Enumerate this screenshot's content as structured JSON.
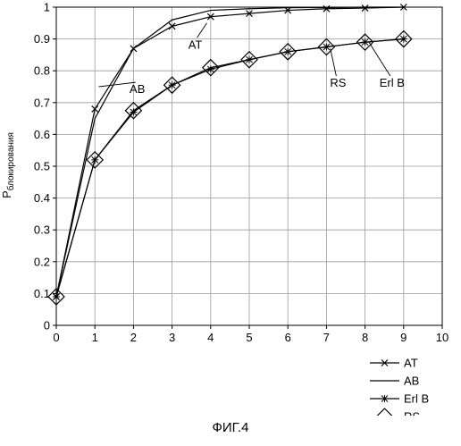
{
  "chart_data": {
    "type": "line",
    "ylabel_main": "P",
    "ylabel_sub": "блокирования",
    "xlim": [
      0,
      10
    ],
    "ylim": [
      0,
      1
    ],
    "x_ticks": [
      "0",
      "1",
      "2",
      "3",
      "4",
      "5",
      "6",
      "7",
      "8",
      "9",
      "10"
    ],
    "y_ticks": [
      "0",
      "0.1",
      "0.2",
      "0.3",
      "0.4",
      "0.5",
      "0.6",
      "0.7",
      "0.8",
      "0.9",
      "1"
    ],
    "grid": true,
    "legend_position": "bottom-right",
    "series": [
      {
        "name": "AT",
        "marker": "x",
        "x": [
          0,
          1,
          2,
          3,
          4,
          5,
          6,
          7,
          8,
          9
        ],
        "values": [
          0.09,
          0.68,
          0.87,
          0.94,
          0.97,
          0.98,
          0.99,
          0.995,
          0.997,
          1.0
        ]
      },
      {
        "name": "AB",
        "marker": "none",
        "x": [
          0,
          1,
          2,
          3,
          4,
          5,
          6,
          7,
          8,
          9
        ],
        "values": [
          0.09,
          0.65,
          0.87,
          0.96,
          0.99,
          0.995,
          0.998,
          0.999,
          1.0,
          1.0
        ]
      },
      {
        "name": "Erl B",
        "marker": "star",
        "x": [
          0,
          1,
          2,
          3,
          4,
          5,
          6,
          7,
          8,
          9
        ],
        "values": [
          0.09,
          0.52,
          0.67,
          0.755,
          0.805,
          0.835,
          0.86,
          0.875,
          0.89,
          0.9
        ]
      },
      {
        "name": "RS",
        "marker": "diamond",
        "x": [
          0,
          1,
          2,
          3,
          4,
          5,
          6,
          7,
          8,
          9
        ],
        "values": [
          0.09,
          0.52,
          0.675,
          0.755,
          0.81,
          0.835,
          0.86,
          0.875,
          0.89,
          0.9
        ]
      }
    ],
    "annotations": [
      {
        "text": "AB",
        "points_to": {
          "x": 1.1,
          "y": 0.75
        },
        "label_at": {
          "x": 2.1,
          "y": 0.73
        }
      },
      {
        "text": "AT",
        "points_to": {
          "x": 3.9,
          "y": 0.95
        },
        "label_at": {
          "x": 3.6,
          "y": 0.87
        }
      },
      {
        "text": "RS",
        "points_to": {
          "x": 7.1,
          "y": 0.87
        },
        "label_at": {
          "x": 7.3,
          "y": 0.75
        }
      },
      {
        "text": "Erl B",
        "points_to": {
          "x": 8.1,
          "y": 0.89
        },
        "label_at": {
          "x": 8.7,
          "y": 0.75
        }
      }
    ]
  },
  "caption": "ФИГ.4"
}
